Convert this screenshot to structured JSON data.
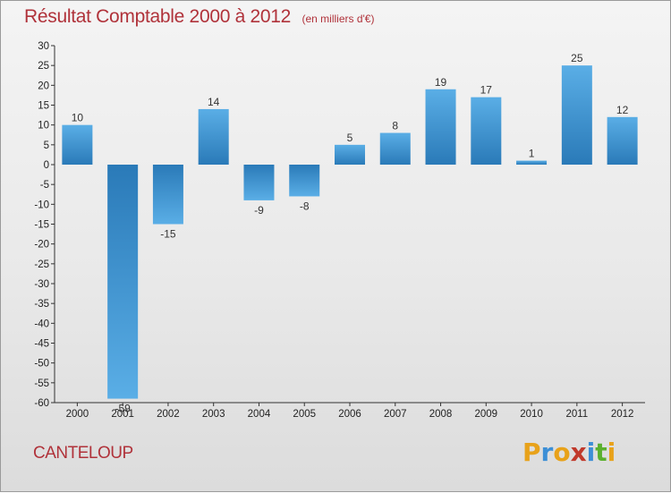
{
  "chart_data": {
    "type": "bar",
    "title": "Résultat Comptable 2000 à 2012",
    "subtitle": "(en milliers d'€)",
    "categories": [
      "2000",
      "2001",
      "2002",
      "2003",
      "2004",
      "2005",
      "2006",
      "2007",
      "2008",
      "2009",
      "2010",
      "2011",
      "2012"
    ],
    "values": [
      10,
      -59,
      -15,
      14,
      -9,
      -8,
      5,
      8,
      19,
      17,
      1,
      25,
      12
    ],
    "ylim": [
      -60,
      30
    ],
    "yticks": [
      30,
      25,
      20,
      15,
      10,
      5,
      0,
      -5,
      -10,
      -15,
      -20,
      -25,
      -30,
      -35,
      -40,
      -45,
      -50,
      -55,
      -60
    ],
    "grid": false,
    "colors": {
      "bar_light": "#5aaee6",
      "bar_dark": "#2a7ab8",
      "title": "#b0323a"
    }
  },
  "footer": {
    "commune": "CANTELOUP",
    "brand_letters": [
      "P",
      "r",
      "o",
      "x",
      "i",
      "t",
      "i"
    ],
    "brand_colors": [
      "#e8a21a",
      "#3d8fd6",
      "#e8a21a",
      "#c0392b",
      "#3d8fd6",
      "#5ab02e",
      "#e8a21a"
    ]
  }
}
